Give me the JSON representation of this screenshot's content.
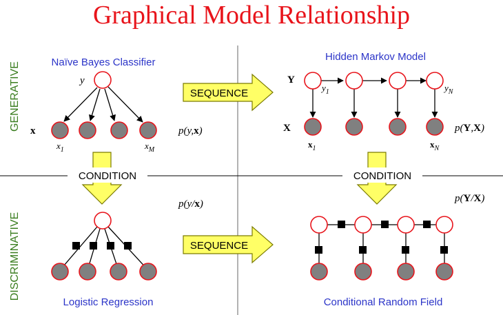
{
  "title": "Graphical Model Relationship",
  "side_labels": {
    "generative": "GENERATIVE",
    "discriminative": "DISCRIMINATIVE"
  },
  "models": {
    "naive_bayes": "Naïve Bayes Classifier",
    "hmm": "Hidden Markov Model",
    "logistic_regression": "Logistic Regression",
    "crf": "Conditional Random Field"
  },
  "arrows": {
    "sequence": "SEQUENCE",
    "condition": "CONDITION"
  },
  "formulas": {
    "nb": {
      "pre": "p(",
      "a": "y",
      "sep": ",",
      "b": "x",
      "post": ")"
    },
    "lr": {
      "pre": "p(",
      "a": "y",
      "sep": "/",
      "b": "x",
      "post": ")"
    },
    "hmm": {
      "pre": "p(",
      "a": "Y",
      "sep": ",",
      "b": "X",
      "post": ")"
    },
    "crf": {
      "pre": "p(",
      "a": "Y",
      "sep": "/",
      "b": "X",
      "post": ")"
    }
  },
  "variables": {
    "nb_y": "y",
    "nb_x": "x",
    "nb_x1": {
      "base": "x",
      "sub": "1"
    },
    "nb_xM": {
      "base": "x",
      "sub": "M"
    },
    "hmm_Y": "Y",
    "hmm_X": "X",
    "hmm_y1": {
      "base": "y",
      "sub": "1"
    },
    "hmm_yN": {
      "base": "y",
      "sub": "N"
    },
    "hmm_x1": {
      "base": "x",
      "sub": "1"
    },
    "hmm_xN": {
      "base": "x",
      "sub": "N"
    }
  },
  "colors": {
    "title": "#e8141b",
    "generative": "#3a7d1f",
    "discriminative": "#3a7d1f",
    "model_name": "#2b34c8",
    "node_outline": "#e8141b",
    "observed_fill": "#808080",
    "arrow_fill": "#ffff66",
    "arrow_stroke": "#7a7a00"
  }
}
